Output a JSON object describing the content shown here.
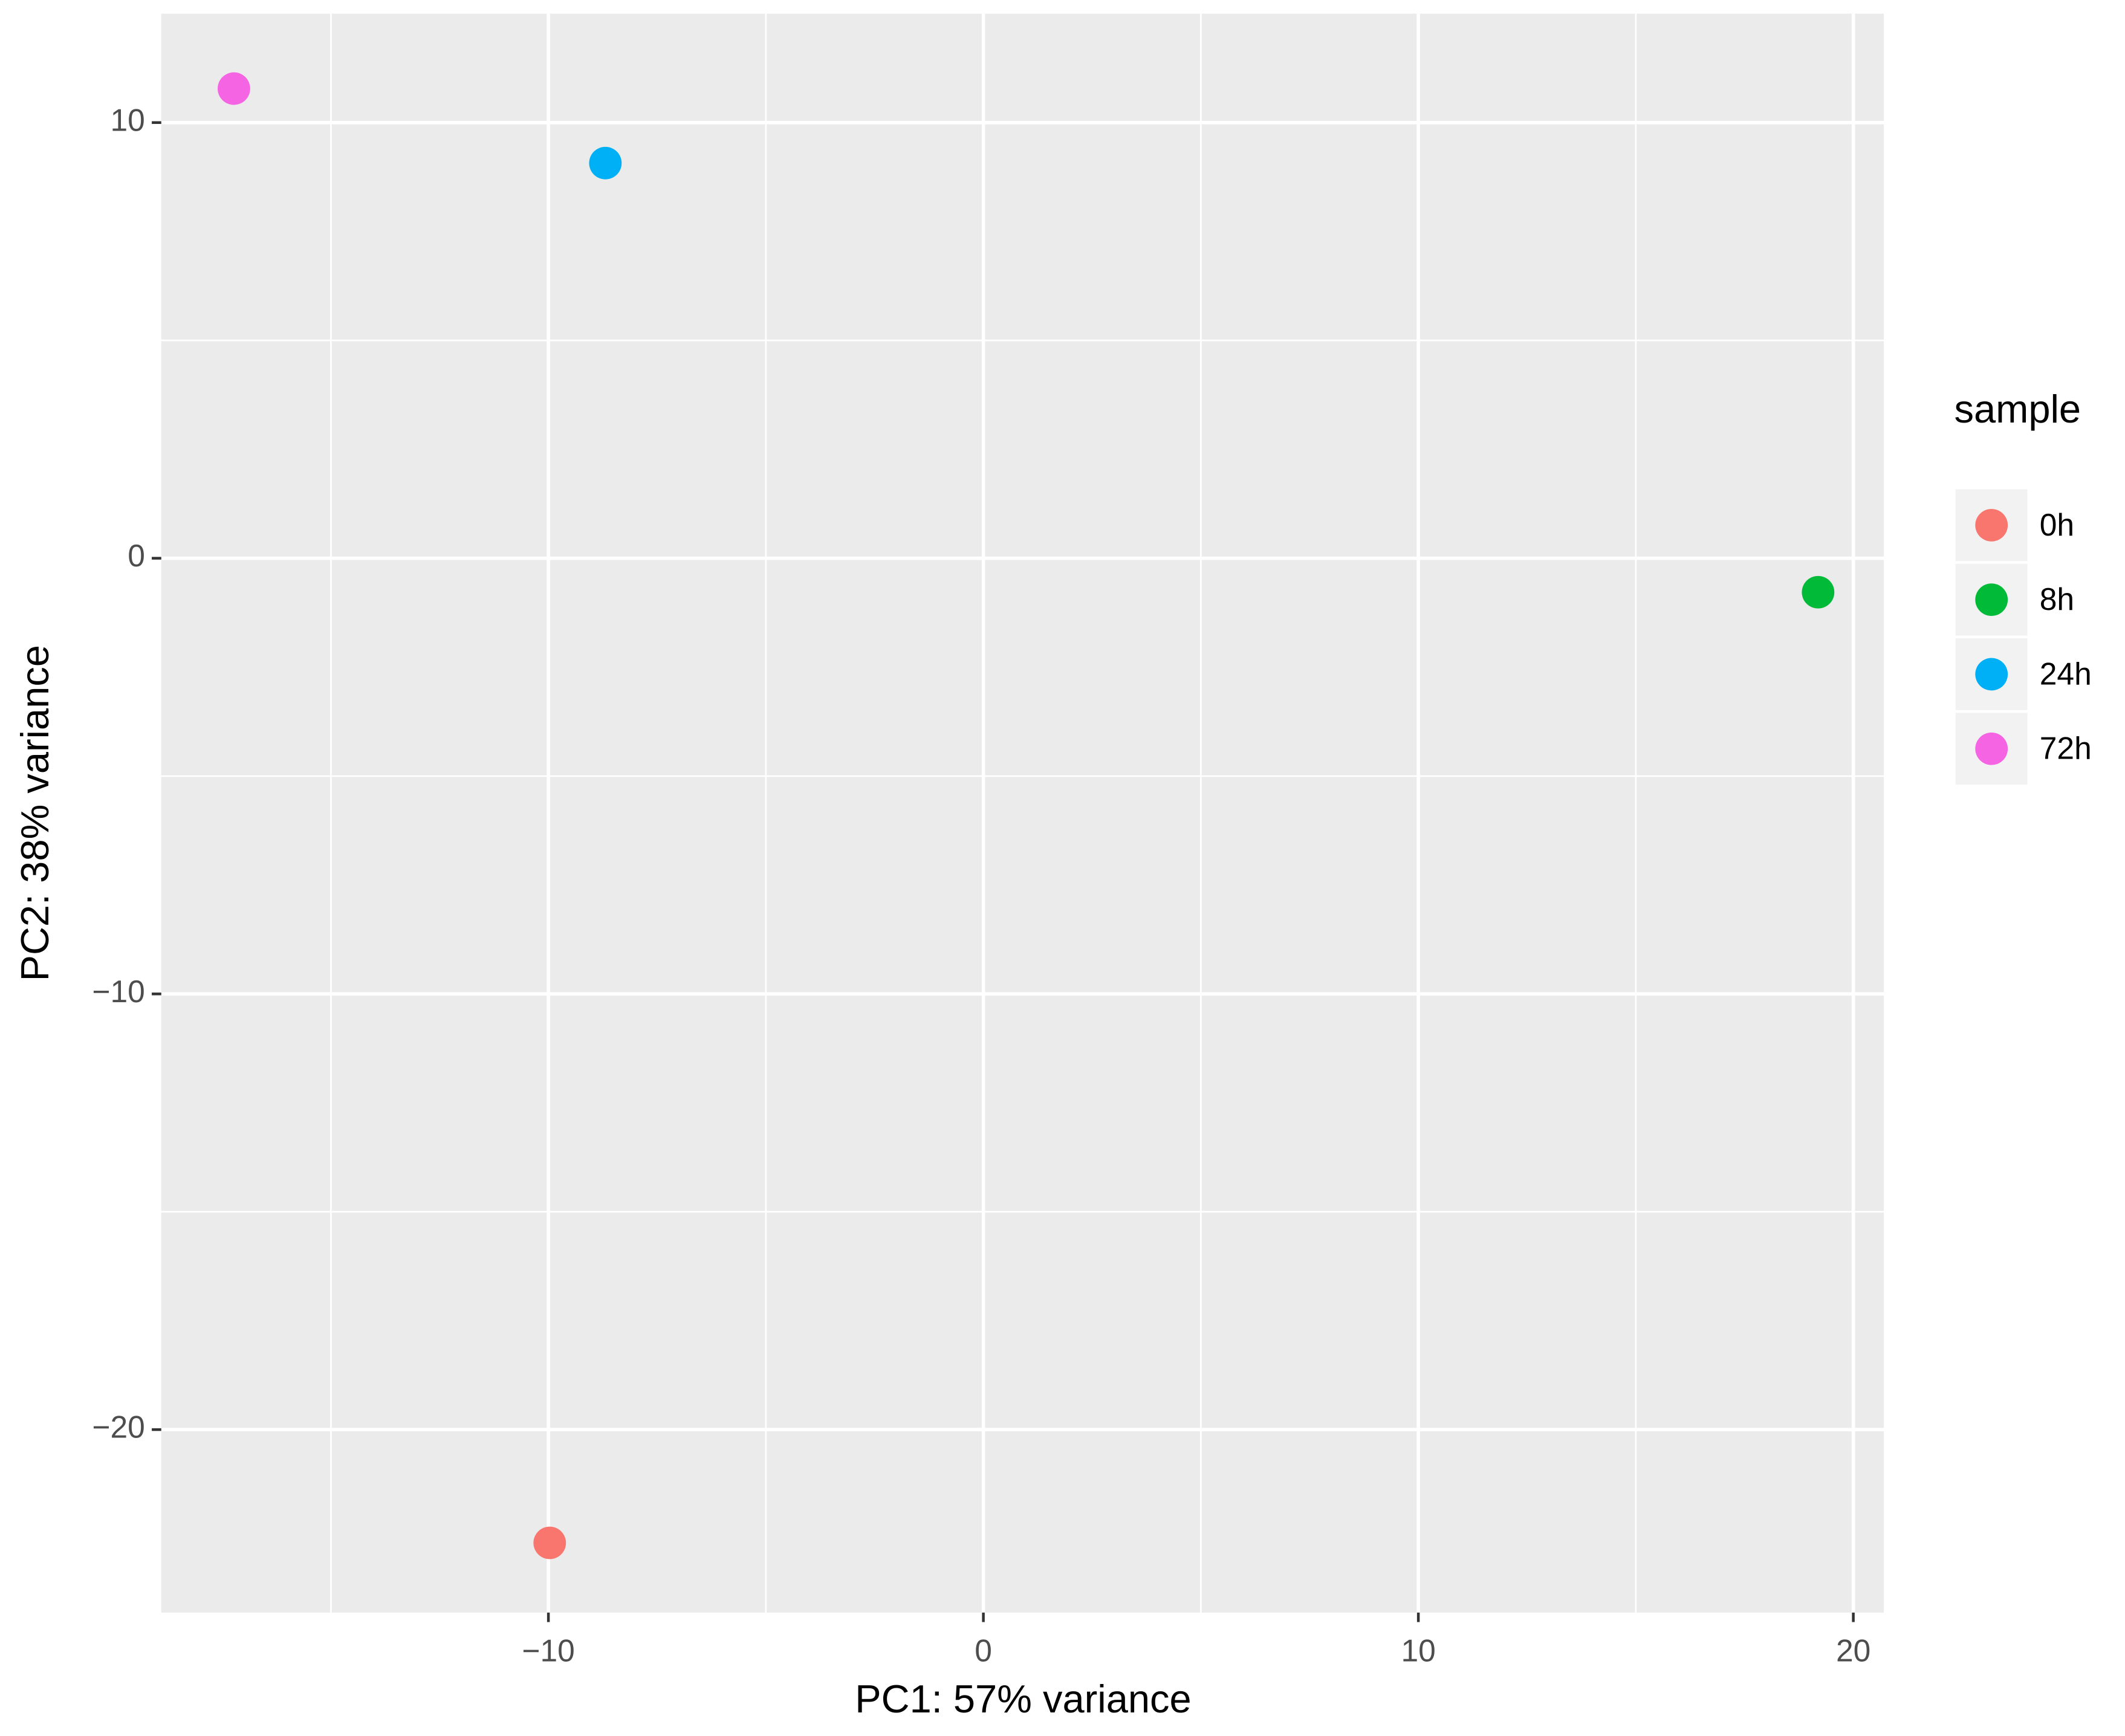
{
  "chart_data": {
    "type": "scatter",
    "x_label": "PC1: 57% variance",
    "y_label": "PC2: 38% variance",
    "legend_title": "sample",
    "legend_position": "right",
    "grid": true,
    "xlim": [
      -18.9,
      20.7
    ],
    "ylim": [
      -24.2,
      12.5
    ],
    "xticks": [
      {
        "value": -10,
        "label": "−10"
      },
      0,
      10,
      20
    ],
    "yticks": [
      {
        "value": -20,
        "label": "−20"
      },
      {
        "value": -10,
        "label": "−10"
      },
      0,
      10
    ],
    "series": [
      {
        "name": "0h",
        "color": "#F8766D",
        "x": [
          -9.97
        ],
        "values": [
          -22.6
        ]
      },
      {
        "name": "8h",
        "color": "#00BA38",
        "x": [
          19.19
        ],
        "values": [
          -0.78
        ]
      },
      {
        "name": "24h",
        "color": "#00B0F6",
        "x": [
          -8.69
        ],
        "values": [
          9.07
        ]
      },
      {
        "name": "72h",
        "color": "#F564E3",
        "x": [
          -17.23
        ],
        "values": [
          10.78
        ]
      }
    ]
  }
}
